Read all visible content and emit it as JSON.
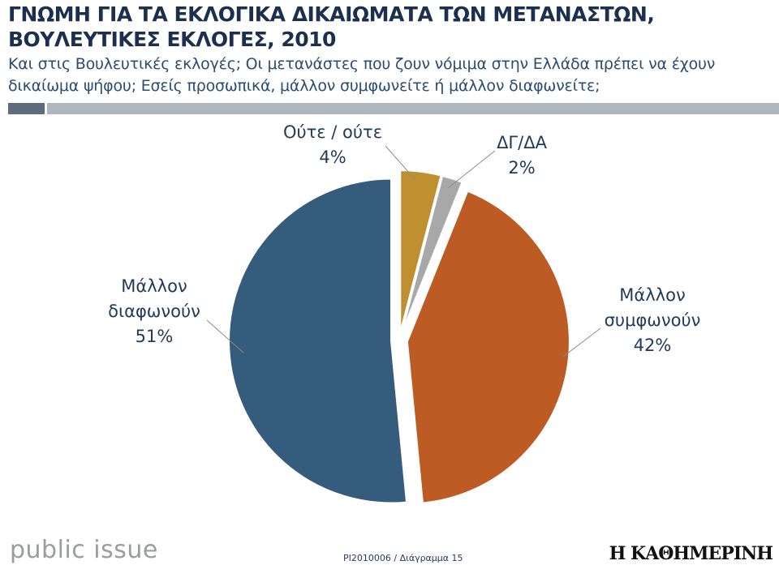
{
  "header": {
    "title_line1": "ΓΝΩΜΗ ΓΙΑ ΤΑ ΕΚΛΟΓΙΚΑ ΔΙΚΑΙΩΜΑΤΑ ΤΩΝ ΜΕΤΑΝΑΣΤΩΝ,",
    "title_line2": "ΒΟΥΛΕΥΤΙΚΕΣ ΕΚΛΟΓΕΣ, 2010",
    "question_line1": "Και στις Βουλευτικές εκλογές; Οι μετανάστες που ζουν νόμιμα στην Ελλάδα πρέπει να έχουν",
    "question_line2": "δικαίωμα ψήφου; Εσείς προσωπικά, μάλλον συμφωνείτε ή μάλλον διαφωνείτε;"
  },
  "colors": {
    "rule_dark": "#5e6d7e",
    "rule_light": "#b0b6bd"
  },
  "chart_data": {
    "type": "pie",
    "title": "",
    "slices": [
      {
        "label_lines": [
          "Μάλλον",
          "διαφωνούν"
        ],
        "value": 51,
        "value_label": "51%",
        "color": "#365c7d"
      },
      {
        "label_lines": [
          "Ούτε / ούτε"
        ],
        "value": 4,
        "value_label": "4%",
        "color": "#bf902f"
      },
      {
        "label_lines": [
          "ΔΓ/ΔΑ"
        ],
        "value": 2,
        "value_label": "2%",
        "color": "#a8a8a8"
      },
      {
        "label_lines": [
          "Μάλλον",
          "συμφωνούν"
        ],
        "value": 42,
        "value_label": "42%",
        "color": "#bd5b24"
      }
    ]
  },
  "footer": {
    "logo": "public issue",
    "code": "PI2010006 / Διάγραμμα 15",
    "brand": "Η ΚΑΘΗΜΕΡΙΝΗ"
  }
}
